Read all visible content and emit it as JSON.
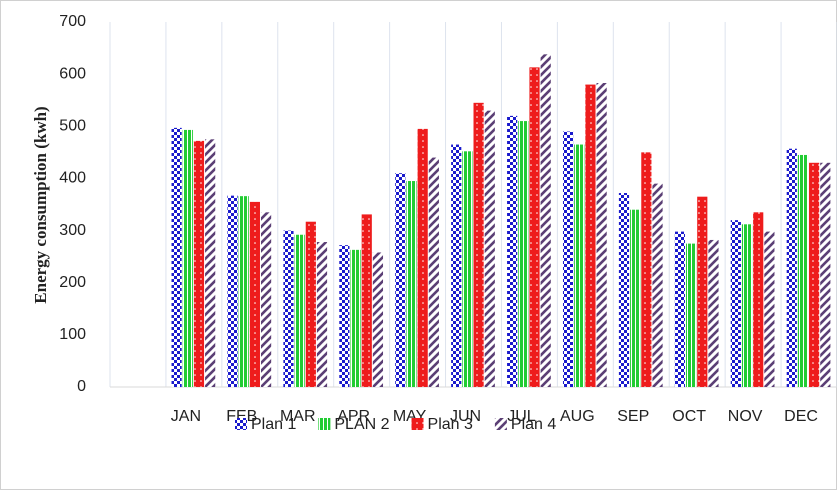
{
  "chart_data": {
    "type": "bar",
    "y_axis_label": "Energy consumption (kwh)",
    "categories": [
      null,
      "JAN",
      "FEB",
      "MAR",
      "APR",
      "MAY",
      "JUN",
      "JUL",
      "AUG",
      "SEP",
      "OCT",
      "NOV",
      "DEC"
    ],
    "series": [
      {
        "name": "Plan 1",
        "color": "#1a1acc",
        "pattern": "checker",
        "values": [
          null,
          497,
          367,
          300,
          272,
          410,
          465,
          520,
          490,
          372,
          298,
          320,
          457
        ]
      },
      {
        "name": "PLAN 2",
        "color": "#22cc33",
        "pattern": "vertical",
        "values": [
          null,
          493,
          366,
          292,
          263,
          395,
          452,
          510,
          465,
          340,
          275,
          312,
          445
        ]
      },
      {
        "name": "Plan 3",
        "color": "#ee1c1c",
        "pattern": "dots",
        "values": [
          null,
          472,
          355,
          317,
          331,
          495,
          545,
          613,
          580,
          450,
          365,
          335,
          430
        ]
      },
      {
        "name": "Plan 4",
        "color": "#5b3f75",
        "pattern": "diagonal",
        "values": [
          null,
          475,
          335,
          278,
          258,
          440,
          530,
          638,
          583,
          390,
          282,
          298,
          430
        ]
      }
    ],
    "ylim": [
      0,
      700
    ],
    "yticks": [
      0,
      100,
      200,
      300,
      400,
      500,
      600,
      700
    ],
    "grid": "vertical"
  }
}
